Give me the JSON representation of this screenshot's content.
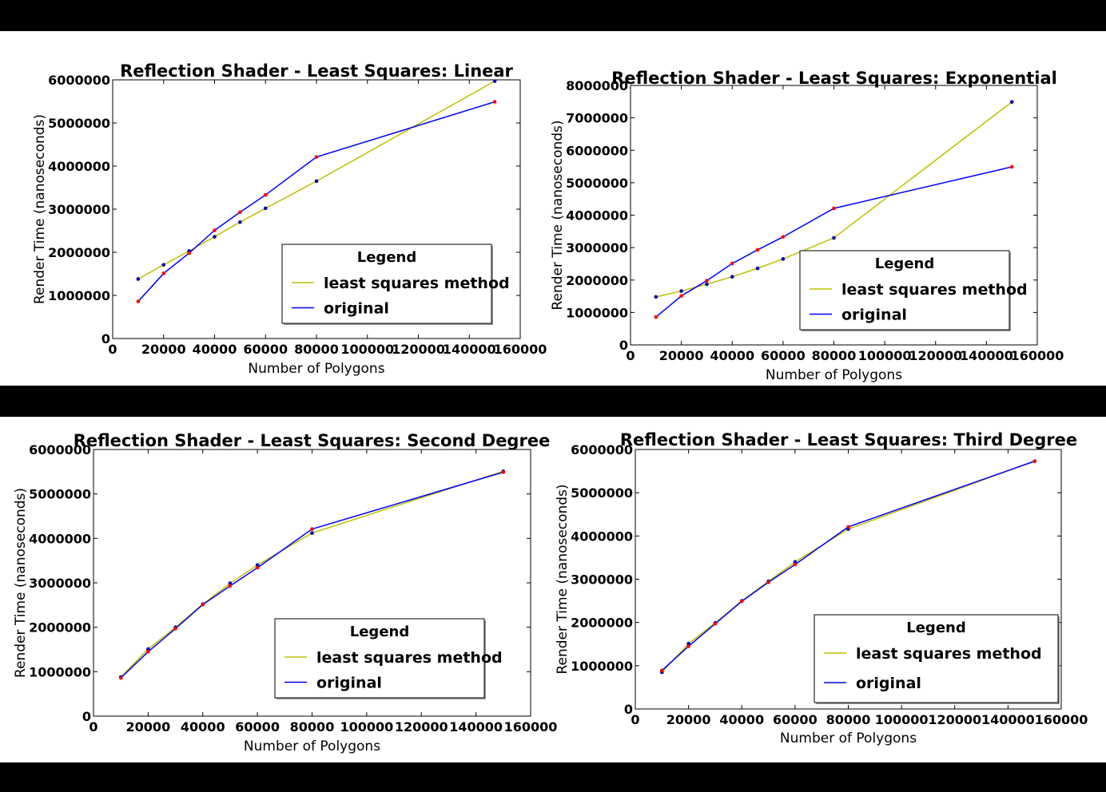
{
  "colors": {
    "least_squares": "#bfbf00",
    "original": "#0000ff",
    "marker_a": "#ff0000",
    "marker_b": "#0000aa",
    "frame": "#000000",
    "band": "#000000"
  },
  "chart_data": [
    {
      "type": "line",
      "title": "Reflection Shader - Least Squares: Linear",
      "xlabel": "Number of Polygons",
      "ylabel": "Render Time (nanoseconds)",
      "xlim": [
        0,
        160000
      ],
      "ylim": [
        0,
        6000000
      ],
      "x_ticks": [
        "0",
        "20000",
        "40000",
        "60000",
        "80000",
        "100000",
        "120000",
        "140000",
        "160000"
      ],
      "y_ticks": [
        "0",
        "1000000",
        "2000000",
        "3000000",
        "4000000",
        "5000000",
        "6000000"
      ],
      "legend": {
        "title": "Legend",
        "position": "lower right"
      },
      "x": [
        10000,
        20000,
        30000,
        40000,
        50000,
        60000,
        80000,
        150000
      ],
      "series": [
        {
          "name": "least squares method",
          "values": [
            1380000,
            1710000,
            2030000,
            2360000,
            2700000,
            3020000,
            3650000,
            5970000
          ]
        },
        {
          "name": "original",
          "values": [
            860000,
            1510000,
            1980000,
            2510000,
            2930000,
            3330000,
            4210000,
            5490000
          ]
        }
      ]
    },
    {
      "type": "line",
      "title": "Reflection Shader - Least Squares: Exponential",
      "xlabel": "Number of Polygons",
      "ylabel": "Render Time (nanoseconds)",
      "xlim": [
        0,
        160000
      ],
      "ylim": [
        0,
        8000000
      ],
      "x_ticks": [
        "0",
        "20000",
        "40000",
        "60000",
        "80000",
        "100000",
        "120000",
        "140000",
        "160000"
      ],
      "y_ticks": [
        "0",
        "1000000",
        "2000000",
        "3000000",
        "4000000",
        "5000000",
        "6000000",
        "7000000",
        "8000000"
      ],
      "legend": {
        "title": "Legend",
        "position": "lower right"
      },
      "x": [
        10000,
        20000,
        30000,
        40000,
        50000,
        60000,
        80000,
        150000
      ],
      "series": [
        {
          "name": "least squares method",
          "values": [
            1480000,
            1660000,
            1870000,
            2100000,
            2360000,
            2650000,
            3300000,
            7490000
          ]
        },
        {
          "name": "original",
          "values": [
            860000,
            1510000,
            1980000,
            2510000,
            2930000,
            3330000,
            4210000,
            5490000
          ]
        }
      ]
    },
    {
      "type": "line",
      "title": "Reflection Shader - Least Squares: Second Degree",
      "xlabel": "Number of Polygons",
      "ylabel": "Render Time (nanoseconds)",
      "xlim": [
        0,
        160000
      ],
      "ylim": [
        0,
        6000000
      ],
      "x_ticks": [
        "0",
        "20000",
        "40000",
        "60000",
        "80000",
        "100000",
        "120000",
        "140000",
        "160000"
      ],
      "y_ticks": [
        "0",
        "1000000",
        "2000000",
        "3000000",
        "4000000",
        "5000000",
        "6000000"
      ],
      "legend": {
        "title": "Legend",
        "position": "lower right"
      },
      "x": [
        10000,
        20000,
        30000,
        40000,
        50000,
        60000,
        80000,
        150000
      ],
      "series": [
        {
          "name": "least squares method",
          "values": [
            880000,
            1510000,
            2000000,
            2520000,
            2990000,
            3400000,
            4120000,
            5510000
          ]
        },
        {
          "name": "original",
          "values": [
            860000,
            1450000,
            1970000,
            2510000,
            2930000,
            3340000,
            4210000,
            5490000
          ]
        }
      ]
    },
    {
      "type": "line",
      "title": "Reflection Shader - Least Squares: Third Degree",
      "xlabel": "Number of Polygons",
      "ylabel": "Render Time (nanoseconds)",
      "xlim": [
        0,
        160000
      ],
      "ylim": [
        0,
        6000000
      ],
      "x_ticks": [
        "0",
        "20000",
        "40000",
        "60000",
        "80000",
        "100000",
        "120000",
        "140000",
        "160000"
      ],
      "y_ticks": [
        "0",
        "1000000",
        "2000000",
        "3000000",
        "4000000",
        "5000000",
        "6000000"
      ],
      "legend": {
        "title": "Legend",
        "position": "lower right"
      },
      "x": [
        10000,
        20000,
        30000,
        40000,
        50000,
        60000,
        80000,
        150000
      ],
      "series": [
        {
          "name": "least squares method",
          "values": [
            850000,
            1510000,
            1990000,
            2500000,
            2950000,
            3400000,
            4160000,
            5730000
          ]
        },
        {
          "name": "original",
          "values": [
            890000,
            1450000,
            1970000,
            2490000,
            2930000,
            3340000,
            4210000,
            5730000
          ]
        }
      ]
    }
  ]
}
